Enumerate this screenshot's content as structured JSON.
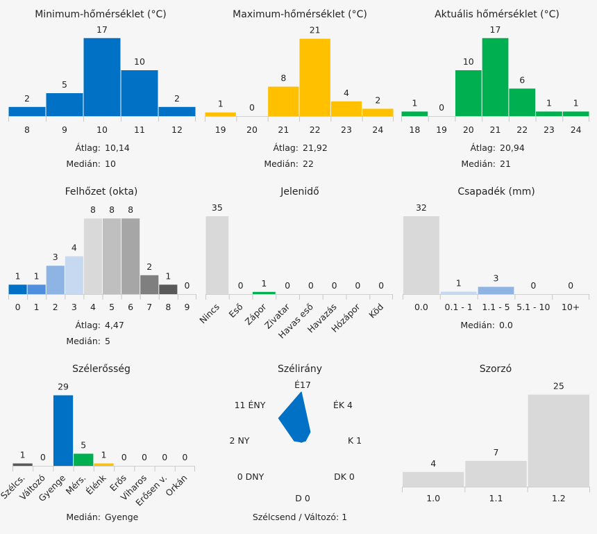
{
  "charts": {
    "min_temp": {
      "title": "Minimum-hőmérséklet (°C)",
      "type": "bar",
      "categories": [
        "8",
        "9",
        "10",
        "11",
        "12"
      ],
      "values": [
        2,
        5,
        17,
        10,
        2
      ],
      "colors": [
        "#0071c5",
        "#0071c5",
        "#0071c5",
        "#0071c5",
        "#0071c5"
      ],
      "stats": [
        [
          "Átlag:",
          "10,14"
        ],
        [
          "Medián:",
          "10"
        ]
      ]
    },
    "max_temp": {
      "title": "Maximum-hőmérséklet (°C)",
      "type": "bar",
      "categories": [
        "19",
        "20",
        "21",
        "22",
        "23",
        "24"
      ],
      "values": [
        1,
        0,
        8,
        21,
        4,
        2
      ],
      "colors": [
        "#ffc000",
        "#ffc000",
        "#ffc000",
        "#ffc000",
        "#ffc000",
        "#ffc000"
      ],
      "stats": [
        [
          "Átlag:",
          "21,92"
        ],
        [
          "Medián:",
          "22"
        ]
      ]
    },
    "cur_temp": {
      "title": "Aktuális hőmérséklet (°C)",
      "type": "bar",
      "categories": [
        "18",
        "19",
        "20",
        "21",
        "22",
        "23",
        "24"
      ],
      "values": [
        1,
        0,
        10,
        17,
        6,
        1,
        1
      ],
      "colors": [
        "#00b050",
        "#00b050",
        "#00b050",
        "#00b050",
        "#00b050",
        "#00b050",
        "#00b050"
      ],
      "stats": [
        [
          "Átlag:",
          "20,94"
        ],
        [
          "Medián:",
          "21"
        ]
      ]
    },
    "cloud": {
      "title": "Felhőzet (okta)",
      "type": "bar",
      "categories": [
        "0",
        "1",
        "2",
        "3",
        "4",
        "5",
        "6",
        "7",
        "8",
        "9"
      ],
      "values": [
        1,
        1,
        3,
        4,
        8,
        8,
        8,
        2,
        1,
        0
      ],
      "colors": [
        "#0071c5",
        "#4f8fdd",
        "#8eb4e3",
        "#c6d9f1",
        "#d9d9d9",
        "#bfbfbf",
        "#a6a6a6",
        "#7f7f7f",
        "#595959",
        "#404040"
      ],
      "stats": [
        [
          "Átlag:",
          "4,47"
        ],
        [
          "Medián:",
          "5"
        ]
      ]
    },
    "phenomenon": {
      "title": "Jelenidő",
      "type": "bar",
      "categories": [
        "Nincs",
        "Eső",
        "Zápor",
        "Zivatar",
        "Havas eső",
        "Havazás",
        "Hózápor",
        "Köd"
      ],
      "values": [
        35,
        0,
        1,
        0,
        0,
        0,
        0,
        0
      ],
      "colors": [
        "#d9d9d9",
        "#d9d9d9",
        "#00b050",
        "#d9d9d9",
        "#d9d9d9",
        "#d9d9d9",
        "#d9d9d9",
        "#d9d9d9"
      ],
      "stats": []
    },
    "precip": {
      "title": "Csapadék (mm)",
      "type": "bar",
      "categories": [
        "0.0",
        "0.1 - 1",
        "1.1 - 5",
        "5.1 - 10",
        "10+"
      ],
      "values": [
        32,
        1,
        3,
        0,
        0
      ],
      "colors": [
        "#d9d9d9",
        "#c6d9f1",
        "#8eb4e3",
        "#4f8fdd",
        "#0071c5"
      ],
      "stats": [
        [
          "Medián:",
          "0.0"
        ]
      ]
    },
    "wind_strength": {
      "title": "Szélerősség",
      "type": "bar",
      "categories": [
        "Szélcs.",
        "Változó",
        "Gyenge",
        "Mérs.",
        "Élénk",
        "Erős",
        "Viharos",
        "Erősen v.",
        "Orkán"
      ],
      "values": [
        1,
        0,
        29,
        5,
        1,
        0,
        0,
        0,
        0
      ],
      "colors": [
        "#595959",
        "#7f7f7f",
        "#0071c5",
        "#00b050",
        "#ffc000",
        "#ff8c00",
        "#e02020",
        "#a00000",
        "#600000"
      ],
      "stats": [
        [
          "Medián:",
          "Gyenge"
        ]
      ]
    },
    "wind_dir": {
      "title": "Szélirány",
      "type": "radar",
      "directions": [
        {
          "label": "É",
          "value": 17
        },
        {
          "label": "ÉK",
          "value": 4
        },
        {
          "label": "K",
          "value": 1
        },
        {
          "label": "DK",
          "value": 0
        },
        {
          "label": "D",
          "value": 0
        },
        {
          "label": "DNY",
          "value": 0
        },
        {
          "label": "NY",
          "value": 2
        },
        {
          "label": "ÉNY",
          "value": 11
        }
      ],
      "color": "#0071c5",
      "calm_label": "Szélcsend / Változó:",
      "calm_value": "1"
    },
    "multiplier": {
      "title": "Szorzó",
      "type": "bar",
      "categories": [
        "1.0",
        "1.1",
        "1.2"
      ],
      "values": [
        4,
        7,
        25
      ],
      "colors": [
        "#d9d9d9",
        "#d9d9d9",
        "#d9d9d9"
      ],
      "stats": []
    }
  }
}
